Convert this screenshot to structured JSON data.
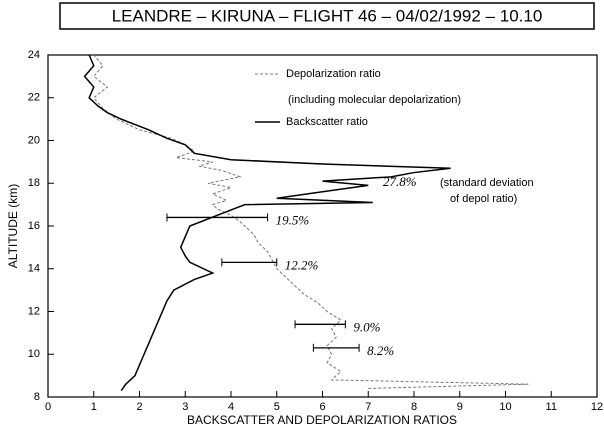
{
  "chart_data": {
    "type": "line",
    "title": "LEANDRE – KIRUNA – FLIGHT 46 – 04/02/1992 – 10.10",
    "xlabel": "BACKSCATTER AND DEPOLARIZATION RATIOS",
    "ylabel": "ALTITUDE (km)",
    "xlim": [
      0,
      12
    ],
    "ylim": [
      8,
      24
    ],
    "xticks": [
      0,
      1,
      2,
      3,
      4,
      5,
      6,
      7,
      8,
      9,
      10,
      11,
      12
    ],
    "yticks": [
      8,
      10,
      12,
      14,
      16,
      18,
      20,
      22,
      24
    ],
    "legend_note": "(including molecular depolarization)",
    "series": [
      {
        "name": "Depolarization ratio",
        "color": "#777777",
        "dashed": true,
        "x": [
          7.0,
          10.5,
          6.2,
          6.4,
          6.1,
          6.2,
          6.1,
          6.3,
          6.2,
          6.4,
          6.1,
          5.9,
          5.6,
          5.4,
          5.2,
          5.0,
          4.9,
          4.8,
          4.6,
          4.5,
          4.3,
          4.2,
          4.0,
          3.7,
          3.6,
          3.9,
          3.6,
          4.0,
          3.5,
          4.2,
          3.8,
          3.3,
          3.6,
          2.8,
          3.2,
          3.0,
          2.7,
          2.0,
          1.5,
          1.2,
          1.0,
          1.3,
          1.0,
          1.2,
          1.0
        ],
        "y": [
          8.4,
          8.6,
          8.8,
          9.2,
          9.6,
          10.0,
          10.4,
          10.8,
          11.2,
          11.6,
          12.0,
          12.4,
          12.8,
          13.2,
          13.6,
          14.0,
          14.4,
          14.8,
          15.2,
          15.6,
          16.0,
          16.2,
          16.5,
          16.8,
          17.0,
          17.2,
          17.5,
          17.8,
          18.0,
          18.3,
          18.6,
          18.8,
          19.0,
          19.2,
          19.5,
          19.8,
          20.1,
          20.5,
          21.0,
          21.5,
          22.0,
          22.5,
          23.0,
          23.5,
          24.0
        ]
      },
      {
        "name": "Backscatter ratio",
        "color": "#000000",
        "dashed": false,
        "x": [
          1.6,
          1.7,
          1.9,
          2.0,
          2.1,
          2.2,
          2.3,
          2.4,
          2.5,
          2.6,
          2.75,
          3.2,
          3.6,
          3.4,
          3.1,
          3.0,
          2.9,
          3.0,
          3.1,
          3.7,
          4.3,
          7.1,
          5.0,
          6.0,
          7.0,
          6.0,
          7.5,
          8.0,
          8.8,
          6.0,
          4.0,
          3.2,
          3.0,
          2.6,
          2.2,
          1.6,
          1.3,
          1.1,
          0.9,
          1.0,
          0.8,
          1.0,
          0.9
        ],
        "y": [
          8.3,
          8.6,
          9.0,
          9.5,
          10.0,
          10.5,
          11.0,
          11.5,
          12.0,
          12.5,
          13.0,
          13.5,
          13.8,
          14.0,
          14.3,
          14.6,
          15.0,
          15.5,
          16.0,
          16.5,
          17.0,
          17.1,
          17.3,
          17.6,
          17.9,
          18.1,
          18.3,
          18.5,
          18.7,
          18.9,
          19.1,
          19.4,
          19.8,
          20.1,
          20.5,
          21.0,
          21.3,
          21.6,
          22.0,
          22.5,
          23.0,
          23.5,
          24.0
        ]
      }
    ],
    "error_bars": [
      {
        "label": "19.5%",
        "x": 3.7,
        "err": 1.1,
        "y": 16.4
      },
      {
        "label": "12.2%",
        "x": 4.4,
        "err": 0.6,
        "y": 14.3
      },
      {
        "label": "9.0%",
        "x": 5.95,
        "err": 0.55,
        "y": 11.4
      },
      {
        "label": "8.2%",
        "x": 6.3,
        "err": 0.5,
        "y": 10.3
      }
    ],
    "annotations": [
      "27.8%",
      "(standard deviation",
      "of depol ratio)"
    ]
  }
}
